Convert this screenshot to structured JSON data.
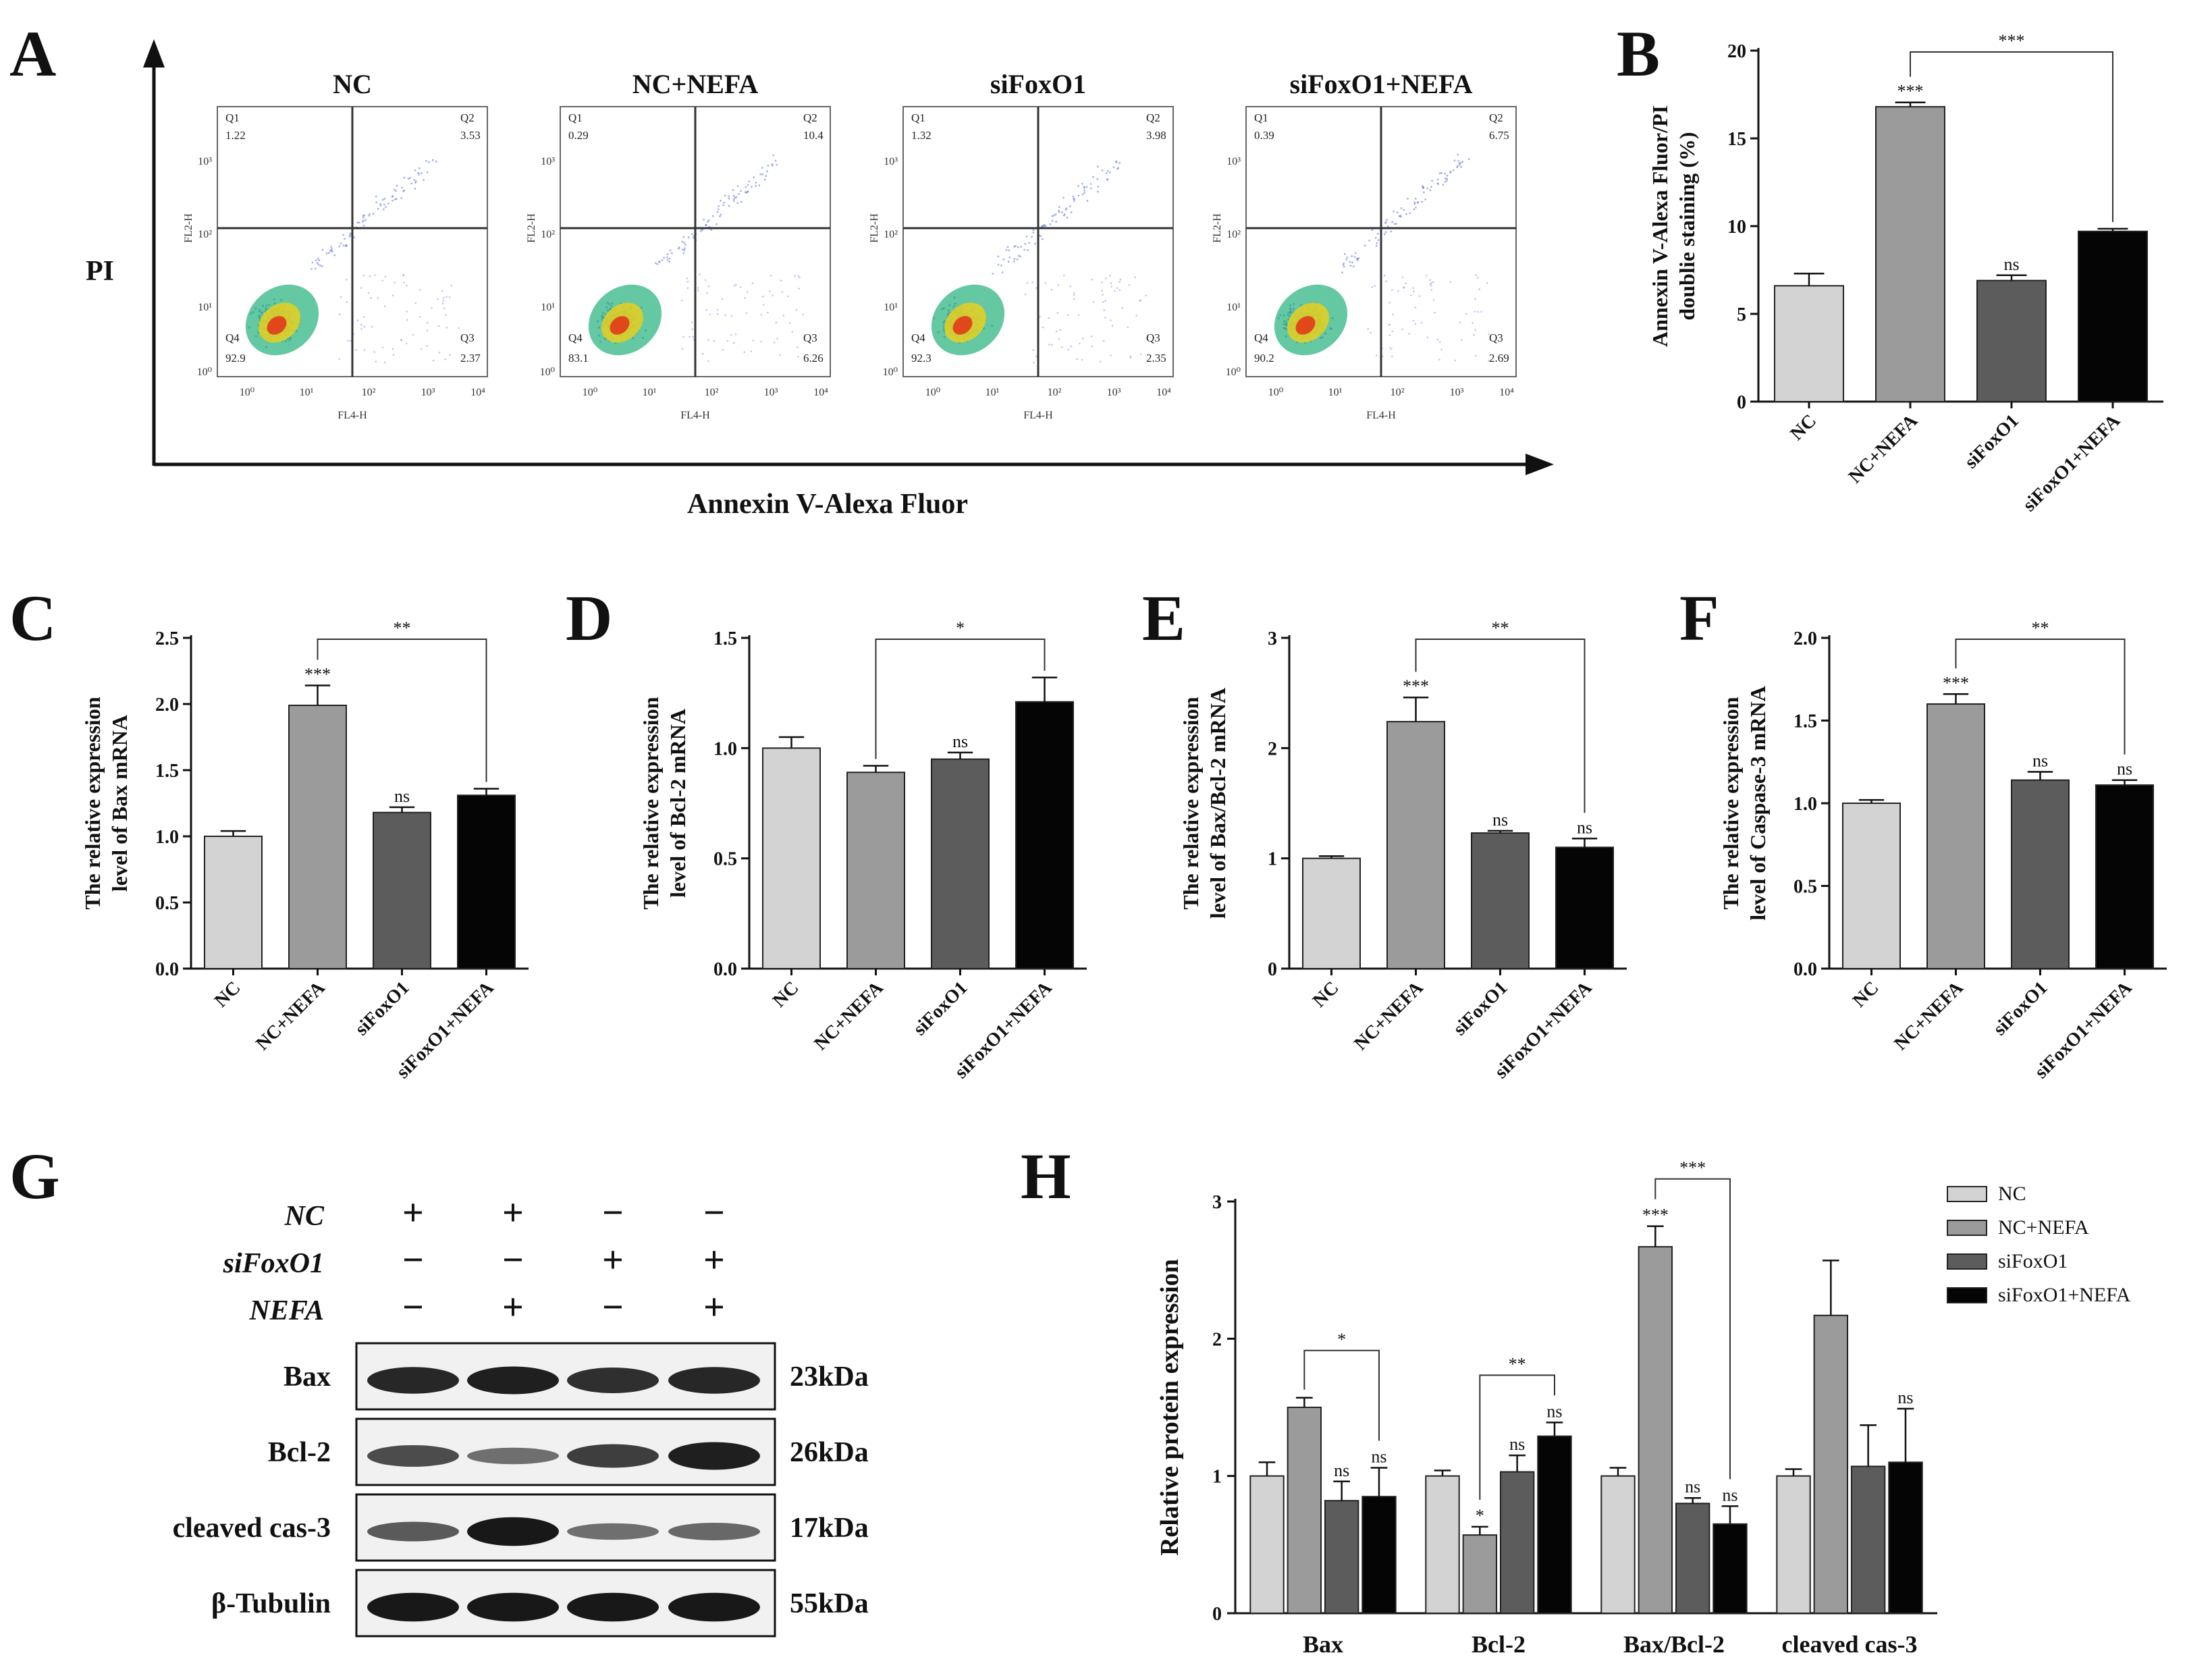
{
  "panel_letters": [
    "A",
    "B",
    "C",
    "D",
    "E",
    "F",
    "G",
    "H"
  ],
  "colors": {
    "NC": "#d3d3d3",
    "NC+NEFA": "#9b9b9b",
    "siFoxO1": "#5c5c5c",
    "siFoxO1+NEFA": "#050505"
  },
  "groups": [
    "NC",
    "NC+NEFA",
    "siFoxO1",
    "siFoxO1+NEFA"
  ],
  "flow": {
    "y_axis_label": "PI",
    "x_axis_label": "Annexin V-Alexa Fluor",
    "plot_x_label": "FL4-H",
    "plot_y_label": "FL2-H",
    "log_ticks": [
      "10⁰",
      "10¹",
      "10²",
      "10³",
      "10⁴"
    ],
    "plots": [
      {
        "title": "NC",
        "q1_label": "Q1",
        "q1": "1.22",
        "q2_label": "Q2",
        "q2": "3.53",
        "q3_label": "Q3",
        "q3": "2.37",
        "q4_label": "Q4",
        "q4": "92.9"
      },
      {
        "title": "NC+NEFA",
        "q1_label": "Q1",
        "q1": "0.29",
        "q2_label": "Q2",
        "q2": "10.4",
        "q3_label": "Q3",
        "q3": "6.26",
        "q4_label": "Q4",
        "q4": "83.1"
      },
      {
        "title": "siFoxO1",
        "q1_label": "Q1",
        "q1": "1.32",
        "q2_label": "Q2",
        "q2": "3.98",
        "q3_label": "Q3",
        "q3": "2.35",
        "q4_label": "Q4",
        "q4": "92.3"
      },
      {
        "title": "siFoxO1+NEFA",
        "q1_label": "Q1",
        "q1": "0.39",
        "q2_label": "Q2",
        "q2": "6.75",
        "q3_label": "Q3",
        "q3": "2.69",
        "q4_label": "Q4",
        "q4": "90.2"
      }
    ]
  },
  "western": {
    "rows_treatment": [
      {
        "label": "NC",
        "signs": [
          "+",
          "+",
          "−",
          "−"
        ]
      },
      {
        "label": "siFoxO1",
        "signs": [
          "−",
          "−",
          "+",
          "+"
        ]
      },
      {
        "label": "NEFA",
        "signs": [
          "−",
          "+",
          "−",
          "+"
        ]
      }
    ],
    "bands": [
      {
        "label": "Bax",
        "kda": "23kDa",
        "intensity": [
          0.85,
          0.9,
          0.8,
          0.85
        ]
      },
      {
        "label": "Bcl-2",
        "kda": "26kDa",
        "intensity": [
          0.6,
          0.35,
          0.7,
          0.9
        ]
      },
      {
        "label": "cleaved cas-3",
        "kda": "17kDa",
        "intensity": [
          0.5,
          0.95,
          0.35,
          0.4
        ]
      },
      {
        "label": "β-Tubulin",
        "kda": "55kDa",
        "intensity": [
          0.95,
          0.95,
          0.95,
          0.95
        ]
      }
    ]
  },
  "chart_data": [
    {
      "panel": "B",
      "type": "bar",
      "categories": [
        "NC",
        "NC+NEFA",
        "siFoxO1",
        "siFoxO1+NEFA"
      ],
      "values": [
        6.6,
        16.8,
        6.9,
        9.7
      ],
      "errors": [
        0.7,
        0.25,
        0.3,
        0.15
      ],
      "ylabel_lines": [
        "Annexin V-Alexa Fluor/PI",
        "doublie staining (%)"
      ],
      "ylim": [
        0,
        20
      ],
      "yticks": [
        "0",
        "5",
        "10",
        "15",
        "20"
      ],
      "bar_labels": [
        "",
        "***",
        "ns",
        ""
      ],
      "bracket": {
        "from": 1,
        "to": 3,
        "label": "***"
      }
    },
    {
      "panel": "C",
      "type": "bar",
      "categories": [
        "NC",
        "NC+NEFA",
        "siFoxO1",
        "siFoxO1+NEFA"
      ],
      "values": [
        1.0,
        1.99,
        1.18,
        1.31
      ],
      "errors": [
        0.04,
        0.15,
        0.04,
        0.05
      ],
      "ylabel_lines": [
        "The relative expression",
        "level of Bax mRNA"
      ],
      "ylim": [
        0,
        2.5
      ],
      "yticks": [
        "0.0",
        "0.5",
        "1.0",
        "1.5",
        "2.0",
        "2.5"
      ],
      "bar_labels": [
        "",
        "***",
        "ns",
        ""
      ],
      "bracket": {
        "from": 1,
        "to": 3,
        "label": "**"
      }
    },
    {
      "panel": "D",
      "type": "bar",
      "categories": [
        "NC",
        "NC+NEFA",
        "siFoxO1",
        "siFoxO1+NEFA"
      ],
      "values": [
        1.0,
        0.89,
        0.95,
        1.21
      ],
      "errors": [
        0.05,
        0.03,
        0.03,
        0.11
      ],
      "ylabel_lines": [
        "The relative expression",
        "level of Bcl-2 mRNA"
      ],
      "ylim": [
        0,
        1.5
      ],
      "yticks": [
        "0.0",
        "0.5",
        "1.0",
        "1.5"
      ],
      "bar_labels": [
        "",
        "",
        "ns",
        ""
      ],
      "bracket": {
        "from": 1,
        "to": 3,
        "label": "*"
      }
    },
    {
      "panel": "E",
      "type": "bar",
      "categories": [
        "NC",
        "NC+NEFA",
        "siFoxO1",
        "siFoxO1+NEFA"
      ],
      "values": [
        1.0,
        2.24,
        1.23,
        1.1
      ],
      "errors": [
        0.02,
        0.22,
        0.02,
        0.08
      ],
      "ylabel_lines": [
        "The relative expression",
        "level of Bax/Bcl-2 mRNA"
      ],
      "ylim": [
        0,
        3
      ],
      "yticks": [
        "0",
        "1",
        "2",
        "3"
      ],
      "bar_labels": [
        "",
        "***",
        "ns",
        "ns"
      ],
      "bracket": {
        "from": 1,
        "to": 3,
        "label": "**"
      }
    },
    {
      "panel": "F",
      "type": "bar",
      "categories": [
        "NC",
        "NC+NEFA",
        "siFoxO1",
        "siFoxO1+NEFA"
      ],
      "values": [
        1.0,
        1.6,
        1.14,
        1.11
      ],
      "errors": [
        0.02,
        0.06,
        0.05,
        0.03
      ],
      "ylabel_lines": [
        "The relative expression",
        "level of Caspase-3 mRNA"
      ],
      "ylim": [
        0,
        2.0
      ],
      "yticks": [
        "0.0",
        "0.5",
        "1.0",
        "1.5",
        "2.0"
      ],
      "bar_labels": [
        "",
        "***",
        "ns",
        "ns"
      ],
      "bracket": {
        "from": 1,
        "to": 3,
        "label": "**"
      }
    },
    {
      "panel": "H",
      "type": "bar",
      "categories": [
        "Bax",
        "Bcl-2",
        "Bax/Bcl-2",
        "cleaved cas-3"
      ],
      "ylabel": "Relative protein expression",
      "ylim": [
        0,
        3
      ],
      "yticks": [
        "0",
        "1",
        "2",
        "3"
      ],
      "series": [
        {
          "name": "NC",
          "values": [
            1.0,
            1.0,
            1.0,
            1.0
          ],
          "errors": [
            0.1,
            0.04,
            0.06,
            0.05
          ],
          "labels": [
            "",
            "",
            "",
            ""
          ]
        },
        {
          "name": "NC+NEFA",
          "values": [
            1.5,
            0.57,
            2.67,
            2.17
          ],
          "errors": [
            0.07,
            0.06,
            0.15,
            0.4
          ],
          "labels": [
            "",
            "*",
            "***",
            ""
          ]
        },
        {
          "name": "siFoxO1",
          "values": [
            0.82,
            1.03,
            0.8,
            1.07
          ],
          "errors": [
            0.14,
            0.12,
            0.04,
            0.3
          ],
          "labels": [
            "ns",
            "ns",
            "ns",
            ""
          ]
        },
        {
          "name": "siFoxO1+NEFA",
          "values": [
            0.85,
            1.29,
            0.65,
            1.1
          ],
          "errors": [
            0.21,
            0.1,
            0.13,
            0.39
          ],
          "labels": [
            "ns",
            "ns",
            "ns",
            "ns"
          ]
        }
      ],
      "brackets": [
        {
          "group": 0,
          "from": 1,
          "to": 3,
          "label": "*"
        },
        {
          "group": 1,
          "from": 1,
          "to": 3,
          "label": "**"
        },
        {
          "group": 2,
          "from": 1,
          "to": 3,
          "label": "***"
        }
      ]
    }
  ]
}
